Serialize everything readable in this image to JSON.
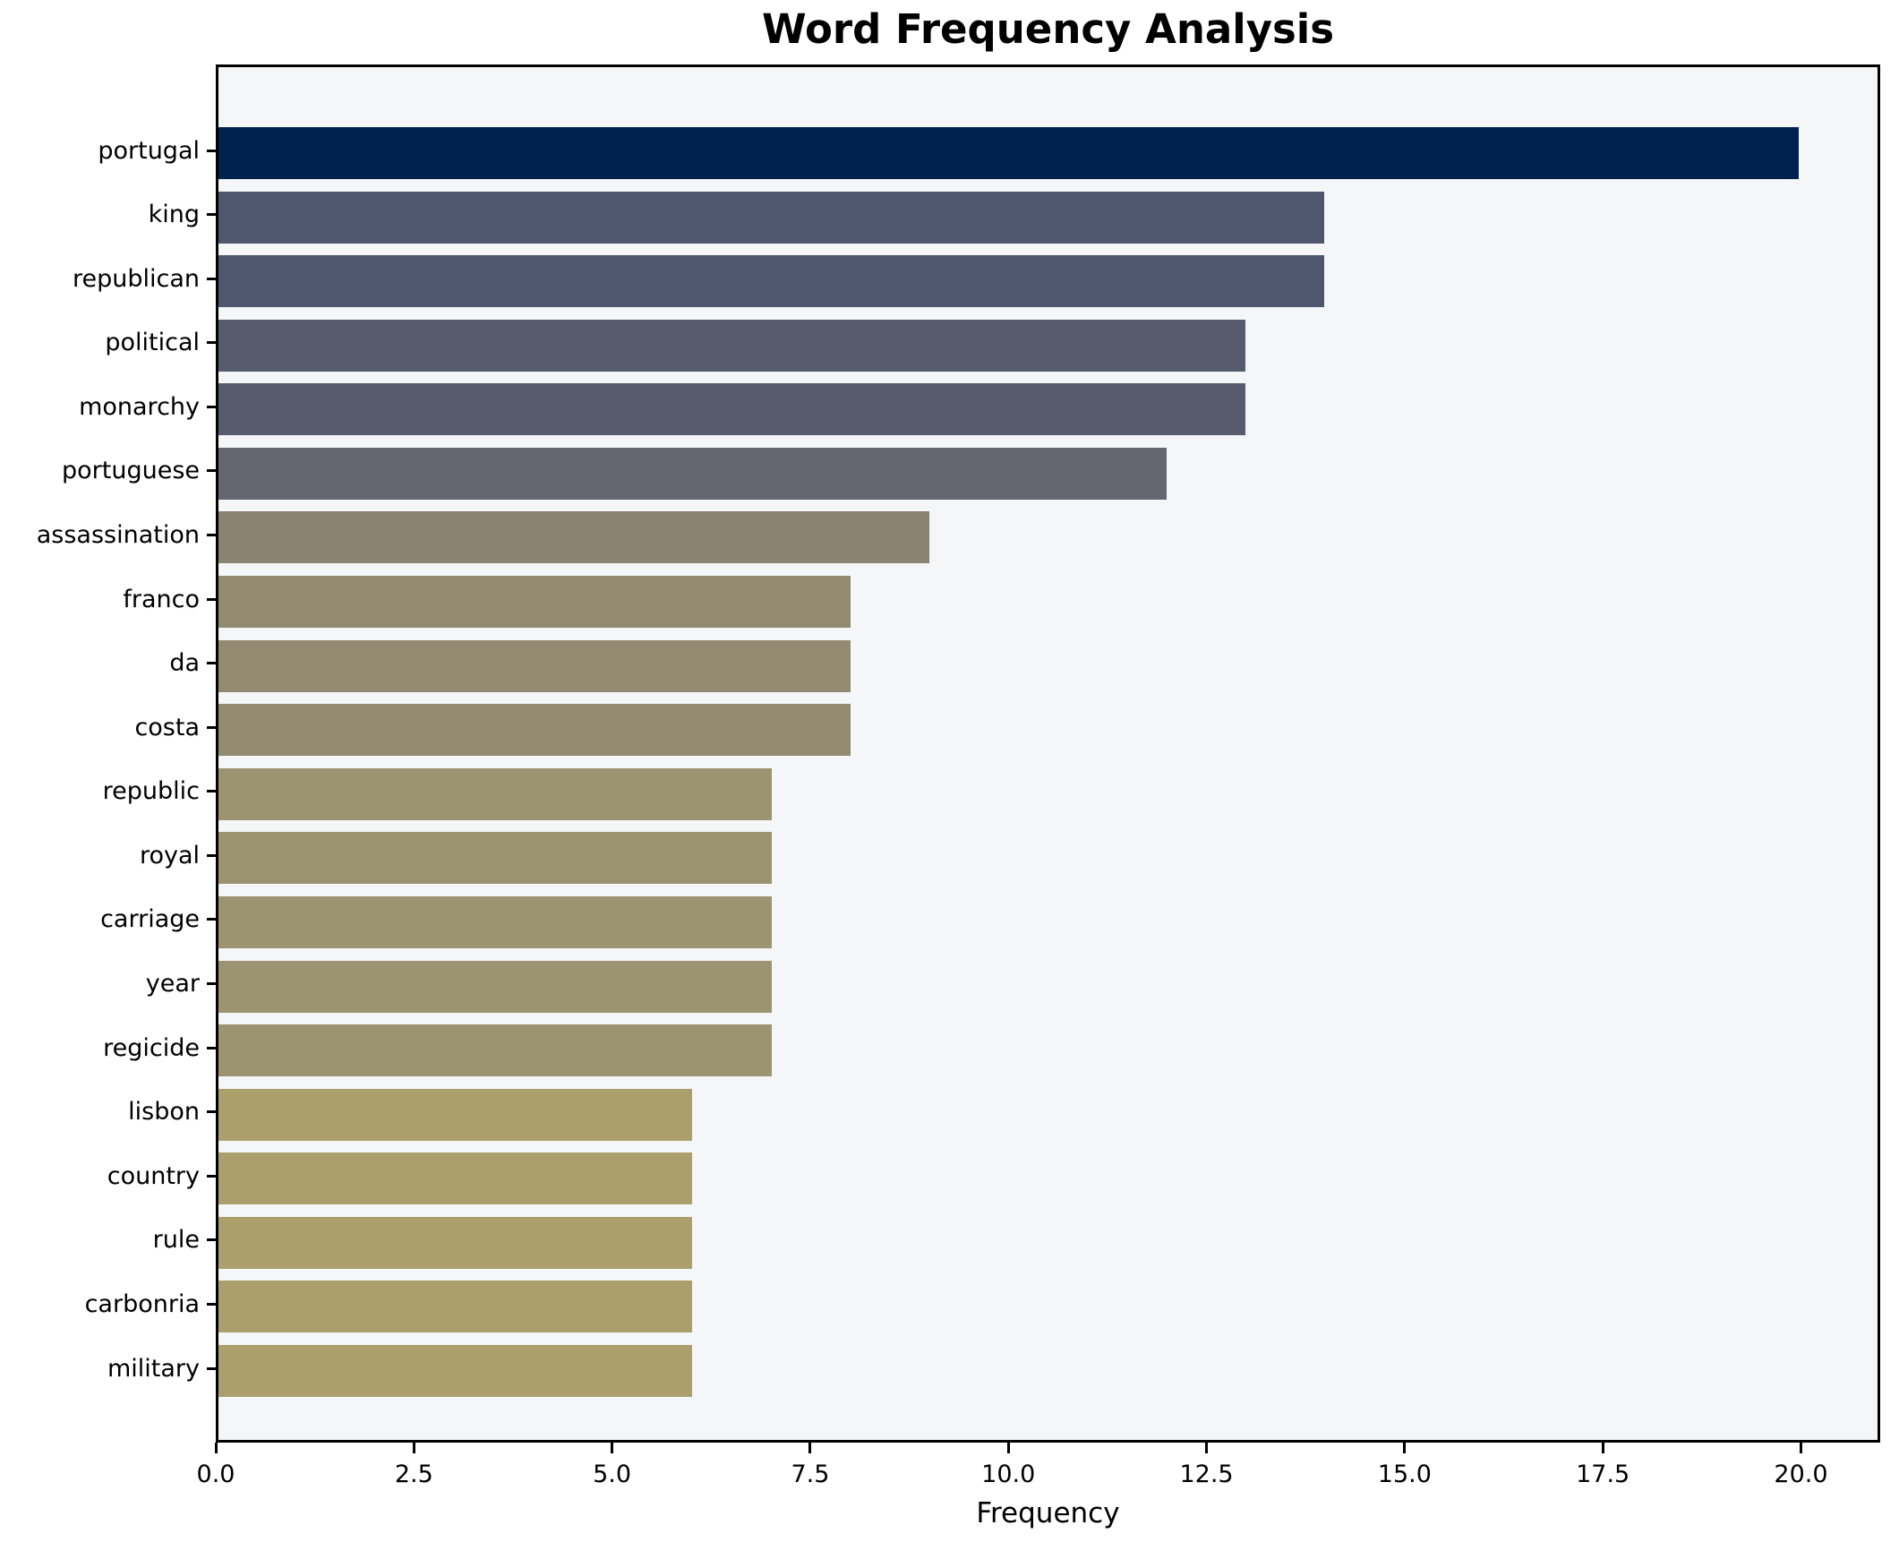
{
  "chart_data": {
    "type": "bar",
    "orientation": "horizontal",
    "title": "Word Frequency Analysis",
    "xlabel": "Frequency",
    "ylabel": "",
    "categories": [
      "portugal",
      "king",
      "republican",
      "political",
      "monarchy",
      "portuguese",
      "assassination",
      "franco",
      "da",
      "costa",
      "republic",
      "royal",
      "carriage",
      "year",
      "regicide",
      "lisbon",
      "country",
      "rule",
      "carbonria",
      "military"
    ],
    "values": [
      20,
      14,
      14,
      13,
      13,
      12,
      9,
      8,
      8,
      8,
      7,
      7,
      7,
      7,
      7,
      6,
      6,
      6,
      6,
      6
    ],
    "bar_colors": [
      "#00224e",
      "#4f576e",
      "#4f576e",
      "#565c6d",
      "#565c6d",
      "#64676f",
      "#8a8372",
      "#928b72",
      "#928b72",
      "#928b72",
      "#9c9471",
      "#9c9471",
      "#9c9471",
      "#9c9471",
      "#9c9471",
      "#aba06c",
      "#aba06c",
      "#aba06c",
      "#aba06c",
      "#aba06c"
    ],
    "xlim": [
      0,
      21
    ],
    "xtick_labels": [
      "0.0",
      "2.5",
      "5.0",
      "7.5",
      "10.0",
      "12.5",
      "15.0",
      "17.5",
      "20.0"
    ],
    "xtick_values": [
      0,
      2.5,
      5,
      7.5,
      10,
      12.5,
      15,
      17.5,
      20
    ],
    "grid": false,
    "legend": null,
    "plot_bg_color": "#f5f6f7",
    "figure_bg_color": "#ffffff",
    "spine_color": "#000000",
    "text_color": "#000000"
  }
}
